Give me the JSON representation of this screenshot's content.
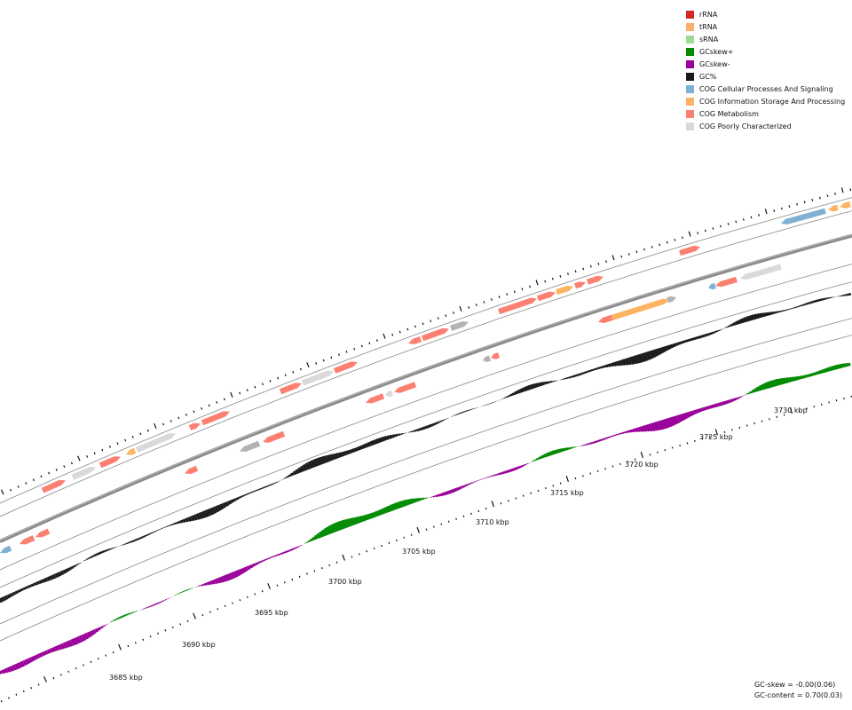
{
  "legend": [
    {
      "label": "rRNA",
      "color": "#d62728"
    },
    {
      "label": "tRNA",
      "color": "#fdae6b"
    },
    {
      "label": "sRNA",
      "color": "#a1d99b"
    },
    {
      "label": "GCskew+",
      "color": "#008a00"
    },
    {
      "label": "GCskew-",
      "color": "#990099"
    },
    {
      "label": "GC%",
      "color": "#1a1a1a"
    },
    {
      "label": "COG Cellular Processes And Signaling",
      "color": "#80b1d3"
    },
    {
      "label": "COG Information Storage And Processing",
      "color": "#fdb462"
    },
    {
      "label": "COG Metabolism",
      "color": "#fb8072"
    },
    {
      "label": "COG Poorly Characterized",
      "color": "#d9d9d9"
    }
  ],
  "stats": {
    "gc_skew": "GC-skew = -0.00(0.06)",
    "gc_content": "GC-content = 0.70(0.03)"
  },
  "axis": {
    "labels": [
      "3685 kbp",
      "3690 kbp",
      "3695 kbp",
      "3700 kbp",
      "3705 kbp",
      "3710 kbp",
      "3715 kbp",
      "3720 kbp",
      "3725 kbp",
      "3730 kbp"
    ]
  }
}
